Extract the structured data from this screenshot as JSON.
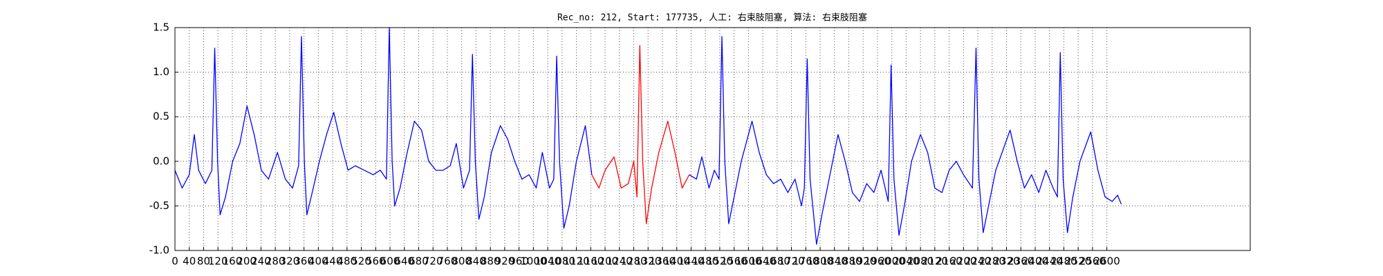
{
  "chart_data": {
    "type": "line",
    "title": "Rec_no: 212, Start: 177735, 人工: 右束肢阻塞, 算法: 右束肢阻塞",
    "xlim": [
      0,
      3000
    ],
    "xticks": [
      0,
      40,
      80,
      120,
      160,
      200,
      240,
      280,
      320,
      360,
      400,
      440,
      480,
      520,
      560,
      600,
      640,
      680,
      720,
      760,
      800,
      840,
      880,
      920,
      960,
      1000,
      1040,
      1080,
      1120,
      1160,
      1200,
      1240,
      1280,
      1320,
      1360,
      1400,
      1440,
      1480,
      1520,
      1560,
      1600,
      1640,
      1680,
      1720,
      1760,
      1800,
      1840,
      1880,
      1920,
      1960,
      2000,
      2040,
      2080,
      2120,
      2160,
      2200,
      2240,
      2280,
      2320,
      2360,
      2400,
      2440,
      2480,
      2520,
      2560,
      2600
    ],
    "ylim": [
      -1.0,
      1.5
    ],
    "yticks": [
      {
        "value": -1.0,
        "label": "-1.0"
      },
      -0.5,
      {
        "value": 0.0,
        "label": "0.0"
      },
      0.5,
      {
        "value": 1.0,
        "label": "1.0"
      },
      1.5
    ],
    "grid": true,
    "series": [
      {
        "color": "#0000ff",
        "x": [
          0,
          20,
          40,
          54,
          66,
          85,
          103,
          111,
          119,
          126,
          141,
          161,
          181,
          201,
          221,
          241,
          261,
          286,
          308,
          328,
          345,
          353,
          361,
          368,
          383,
          403,
          423,
          443,
          463,
          483,
          503,
          528,
          553,
          573,
          590,
          598,
          606,
          613,
          628,
          648,
          668,
          688,
          708,
          728,
          748,
          768,
          785,
          805,
          822,
          830,
          838,
          848,
          863,
          883,
          908,
          928,
          948,
          968,
          988,
          1008,
          1025,
          1045,
          1057,
          1065,
          1073,
          1085,
          1100,
          1120,
          1145,
          1163
        ],
        "values": [
          -0.1,
          -0.3,
          -0.15,
          0.3,
          -0.1,
          -0.25,
          -0.1,
          1.27,
          0.0,
          -0.6,
          -0.4,
          0.0,
          0.2,
          0.62,
          0.3,
          -0.1,
          -0.2,
          0.1,
          -0.2,
          -0.3,
          -0.05,
          1.4,
          0.0,
          -0.6,
          -0.35,
          0.0,
          0.3,
          0.55,
          0.2,
          -0.1,
          -0.05,
          -0.1,
          -0.15,
          -0.1,
          -0.2,
          1.5,
          0.0,
          -0.5,
          -0.3,
          0.1,
          0.45,
          0.35,
          0.0,
          -0.1,
          -0.1,
          -0.05,
          0.2,
          -0.3,
          -0.1,
          1.2,
          0.0,
          -0.65,
          -0.4,
          0.1,
          0.4,
          0.25,
          0.0,
          -0.2,
          -0.15,
          -0.3,
          0.1,
          -0.3,
          -0.2,
          1.18,
          0.0,
          -0.75,
          -0.5,
          0.0,
          0.4,
          -0.15
        ]
      },
      {
        "color": "#ff0000",
        "x": [
          1163,
          1183,
          1200,
          1225,
          1245,
          1265,
          1280,
          1289,
          1297,
          1305,
          1315,
          1330,
          1350,
          1375,
          1395,
          1415,
          1435
        ],
        "values": [
          -0.15,
          -0.3,
          -0.1,
          0.05,
          -0.3,
          -0.25,
          0.0,
          -0.4,
          1.3,
          0.0,
          -0.7,
          -0.3,
          0.1,
          0.45,
          0.1,
          -0.3,
          -0.15
        ]
      },
      {
        "color": "#0000ff",
        "x": [
          1435,
          1455,
          1470,
          1490,
          1505,
          1518,
          1526,
          1534,
          1545,
          1560,
          1580,
          1610,
          1630,
          1650,
          1670,
          1690,
          1710,
          1730,
          1748,
          1756,
          1764,
          1772,
          1790,
          1805,
          1825,
          1850,
          1870,
          1890,
          1910,
          1930,
          1950,
          1970,
          1990,
          1998,
          2006,
          2020,
          2035,
          2055,
          2080,
          2100,
          2120,
          2140,
          2160,
          2180,
          2200,
          2225,
          2235,
          2243,
          2255,
          2270,
          2290,
          2330,
          2350,
          2370,
          2390,
          2410,
          2430,
          2450,
          2462,
          2470,
          2478,
          2490,
          2505,
          2525,
          2555,
          2575,
          2595,
          2615,
          2630,
          2640
        ],
        "values": [
          -0.15,
          -0.2,
          0.05,
          -0.3,
          -0.1,
          -0.2,
          1.4,
          0.0,
          -0.7,
          -0.4,
          0.0,
          0.45,
          0.1,
          -0.15,
          -0.25,
          -0.2,
          -0.35,
          -0.2,
          -0.5,
          -0.3,
          1.15,
          -0.2,
          -0.93,
          -0.6,
          -0.2,
          0.3,
          0.0,
          -0.35,
          -0.45,
          -0.25,
          -0.35,
          -0.1,
          -0.45,
          1.08,
          -0.2,
          -0.83,
          -0.5,
          0.0,
          0.3,
          0.1,
          -0.3,
          -0.35,
          -0.1,
          0.0,
          -0.15,
          -0.3,
          1.27,
          -0.2,
          -0.8,
          -0.5,
          -0.1,
          0.35,
          0.0,
          -0.3,
          -0.15,
          -0.35,
          -0.1,
          -0.3,
          -0.4,
          1.22,
          -0.2,
          -0.8,
          -0.4,
          0.0,
          0.33,
          -0.1,
          -0.4,
          -0.45,
          -0.38,
          -0.48
        ]
      }
    ]
  }
}
